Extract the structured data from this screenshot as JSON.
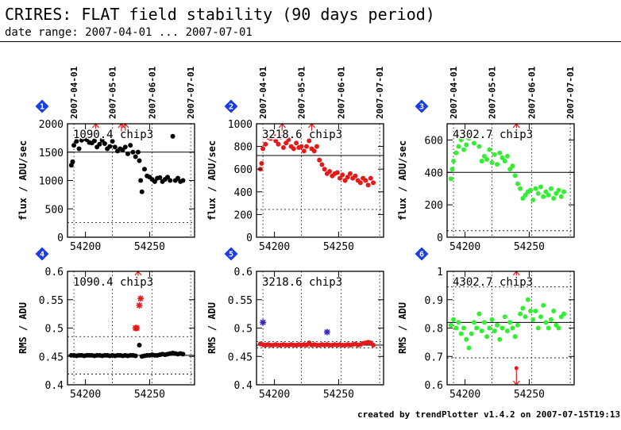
{
  "header": {
    "title": "CRIRES: FLAT field stability (90 days period)",
    "subtitle": "date range: 2007-04-01 ... 2007-07-01"
  },
  "footer": {
    "text": "created by trendPlotter v1.4.2 on 2007-07-15T19:13:13"
  },
  "chart_data": [
    {
      "type": "scatter",
      "panel": "1",
      "label": "1090.4 chip3",
      "ylabel": "flux / ADU/sec",
      "ylim": [
        0,
        2000
      ],
      "yticks": [
        0,
        500,
        1000,
        1500,
        2000
      ],
      "xlim": [
        54186,
        54285
      ],
      "xticks": [
        54200,
        54250
      ],
      "date_ticks": [
        "2007-04-01",
        "2007-05-01",
        "2007-06-01",
        "2007-07-01"
      ],
      "date_values": [
        54191,
        54221,
        54252,
        54282
      ],
      "ref_line": 1500,
      "thresholds": [
        260
      ],
      "outliers_up": [
        54208,
        54228,
        54231
      ],
      "color": "#000000",
      "series": [
        {
          "x": [
            54189,
            54190,
            54191,
            54193,
            54195,
            54197,
            54199,
            54201,
            54203,
            54205,
            54207,
            54209,
            54211,
            54213,
            54215,
            54217,
            54219,
            54221,
            54223,
            54225,
            54227,
            54229,
            54231,
            54233,
            54235,
            54237,
            54239,
            54241,
            54242,
            54243,
            54244,
            54246,
            54248,
            54250,
            54252,
            54254,
            54256,
            54258,
            54260,
            54262,
            54264,
            54266,
            54268,
            54270,
            54272,
            54274,
            54276
          ],
          "y": [
            1270,
            1330,
            1620,
            1690,
            1560,
            1710,
            1740,
            1720,
            1670,
            1660,
            1700,
            1590,
            1640,
            1710,
            1650,
            1560,
            1600,
            1690,
            1590,
            1520,
            1560,
            1540,
            1590,
            1470,
            1620,
            1500,
            1420,
            1500,
            1350,
            1000,
            800,
            1200,
            1080,
            1060,
            1020,
            980,
            1040,
            1050,
            980,
            1020,
            1060,
            1000,
            1780,
            1000,
            1040,
            980,
            1000
          ]
        }
      ]
    },
    {
      "type": "scatter",
      "panel": "2",
      "label": "3218.6 chip3",
      "ylabel": "flux / ADU/sec",
      "ylim": [
        0,
        1000
      ],
      "yticks": [
        0,
        200,
        400,
        600,
        800,
        1000
      ],
      "xlim": [
        54186,
        54285
      ],
      "xticks": [
        54200,
        54250
      ],
      "date_ticks": [
        "2007-04-01",
        "2007-05-01",
        "2007-06-01",
        "2007-07-01"
      ],
      "date_values": [
        54191,
        54221,
        54252,
        54282
      ],
      "ref_line": 720,
      "thresholds": [
        245
      ],
      "outliers_up": [
        54206,
        54229
      ],
      "color": "#e31a1a",
      "series": [
        {
          "x": [
            54189,
            54190,
            54191,
            54193,
            54195,
            54197,
            54199,
            54201,
            54203,
            54205,
            54207,
            54209,
            54211,
            54213,
            54215,
            54217,
            54219,
            54221,
            54223,
            54225,
            54227,
            54229,
            54231,
            54233,
            54235,
            54237,
            54239,
            54241,
            54243,
            54245,
            54247,
            54249,
            54251,
            54253,
            54255,
            54257,
            54259,
            54261,
            54263,
            54265,
            54267,
            54269,
            54271,
            54273,
            54275,
            54277
          ],
          "y": [
            600,
            650,
            780,
            820,
            880,
            870,
            900,
            850,
            820,
            880,
            790,
            830,
            860,
            800,
            780,
            830,
            790,
            800,
            760,
            800,
            850,
            780,
            760,
            800,
            680,
            640,
            600,
            560,
            580,
            540,
            560,
            570,
            520,
            550,
            500,
            530,
            560,
            520,
            540,
            500,
            480,
            520,
            500,
            460,
            520,
            480
          ]
        }
      ]
    },
    {
      "type": "scatter",
      "panel": "3",
      "label": "4302.7 chip3",
      "ylabel": "flux / ADU/sec",
      "ylim": [
        0,
        700
      ],
      "yticks": [
        0,
        200,
        400,
        600
      ],
      "xlim": [
        54186,
        54285
      ],
      "xticks": [
        54200,
        54250
      ],
      "date_ticks": [
        "2007-04-01",
        "2007-05-01",
        "2007-06-01",
        "2007-07-01"
      ],
      "date_values": [
        54191,
        54221,
        54252,
        54282
      ],
      "ref_line": 400,
      "thresholds": [
        40
      ],
      "outliers_up": [
        54240
      ],
      "color": "#33ee33",
      "series": [
        {
          "x": [
            54189,
            54190,
            54191,
            54193,
            54195,
            54197,
            54199,
            54201,
            54203,
            54205,
            54207,
            54209,
            54211,
            54213,
            54215,
            54217,
            54219,
            54221,
            54223,
            54225,
            54227,
            54229,
            54231,
            54233,
            54235,
            54237,
            54239,
            54241,
            54243,
            54245,
            54247,
            54249,
            54251,
            54253,
            54255,
            54257,
            54259,
            54261,
            54263,
            54265,
            54267,
            54269,
            54271,
            54273,
            54275,
            54277
          ],
          "y": [
            360,
            420,
            470,
            520,
            560,
            600,
            540,
            570,
            610,
            650,
            580,
            620,
            560,
            470,
            500,
            480,
            540,
            460,
            510,
            450,
            520,
            490,
            470,
            500,
            420,
            440,
            380,
            330,
            300,
            240,
            260,
            280,
            290,
            230,
            300,
            270,
            310,
            250,
            280,
            260,
            300,
            240,
            270,
            290,
            250,
            280
          ]
        }
      ]
    },
    {
      "type": "scatter",
      "panel": "4",
      "label": "1090.4 chip3",
      "ylabel": "RMS / ADU",
      "ylim": [
        0.4,
        0.6
      ],
      "yticks": [
        0.4,
        0.45,
        0.5,
        0.55,
        0.6
      ],
      "xlim": [
        54186,
        54285
      ],
      "xticks": [
        54200,
        54250
      ],
      "date_ticks": [],
      "date_values": [
        54191,
        54221,
        54252,
        54282
      ],
      "ref_line": 0.452,
      "thresholds": [
        0.419,
        0.485
      ],
      "outliers_up": [
        54241
      ],
      "color": "#000000",
      "series": [
        {
          "x": [
            54189,
            54191,
            54193,
            54195,
            54197,
            54199,
            54201,
            54203,
            54205,
            54207,
            54209,
            54211,
            54213,
            54215,
            54217,
            54219,
            54221,
            54223,
            54225,
            54227,
            54229,
            54231,
            54233,
            54235,
            54237,
            54239,
            54242,
            54244,
            54246,
            54248,
            54250,
            54252,
            54254,
            54256,
            54258,
            54260,
            54262,
            54264,
            54266,
            54268,
            54270,
            54272,
            54274,
            54276
          ],
          "y": [
            0.452,
            0.452,
            0.451,
            0.452,
            0.452,
            0.451,
            0.452,
            0.452,
            0.452,
            0.451,
            0.452,
            0.452,
            0.451,
            0.452,
            0.452,
            0.451,
            0.452,
            0.451,
            0.452,
            0.452,
            0.451,
            0.452,
            0.451,
            0.452,
            0.452,
            0.451,
            0.47,
            0.45,
            0.451,
            0.452,
            0.452,
            0.453,
            0.452,
            0.452,
            0.453,
            0.454,
            0.453,
            0.454,
            0.455,
            0.456,
            0.455,
            0.454,
            0.455,
            0.454
          ]
        }
      ],
      "highlight": {
        "color": "#e31a1a",
        "x": [
          54239,
          54240,
          54242,
          54243
        ],
        "y": [
          0.5,
          0.5,
          0.54,
          0.552
        ]
      }
    },
    {
      "type": "scatter",
      "panel": "5",
      "label": "3218.6 chip3",
      "ylabel": "RMS / ADU",
      "ylim": [
        0.4,
        0.6
      ],
      "yticks": [
        0.4,
        0.45,
        0.5,
        0.55,
        0.6
      ],
      "xlim": [
        54186,
        54285
      ],
      "xticks": [
        54200,
        54250
      ],
      "date_ticks": [],
      "date_values": [
        54191,
        54221,
        54252,
        54282
      ],
      "ref_line": 0.47,
      "thresholds": [
        0.465,
        0.476
      ],
      "outliers_up": [],
      "color": "#e31a1a",
      "series": [
        {
          "x": [
            54189,
            54191,
            54193,
            54195,
            54197,
            54199,
            54201,
            54203,
            54205,
            54207,
            54209,
            54211,
            54213,
            54215,
            54217,
            54219,
            54221,
            54223,
            54225,
            54227,
            54229,
            54231,
            54233,
            54235,
            54237,
            54239,
            54241,
            54243,
            54245,
            54247,
            54249,
            54251,
            54253,
            54255,
            54257,
            54259,
            54261,
            54263,
            54265,
            54267,
            54269,
            54271,
            54273,
            54275,
            54277
          ],
          "y": [
            0.472,
            0.471,
            0.47,
            0.471,
            0.47,
            0.47,
            0.471,
            0.47,
            0.47,
            0.471,
            0.47,
            0.47,
            0.471,
            0.47,
            0.47,
            0.471,
            0.47,
            0.471,
            0.47,
            0.474,
            0.47,
            0.471,
            0.47,
            0.47,
            0.471,
            0.47,
            0.471,
            0.47,
            0.47,
            0.471,
            0.47,
            0.471,
            0.47,
            0.47,
            0.471,
            0.47,
            0.471,
            0.472,
            0.47,
            0.471,
            0.473,
            0.474,
            0.475,
            0.474,
            0.47
          ]
        }
      ],
      "highlight": {
        "color": "#3322cc",
        "x": [
          54191,
          54241
        ],
        "y": [
          0.51,
          0.493
        ]
      }
    },
    {
      "type": "scatter",
      "panel": "6",
      "label": "4302.7 chip3",
      "ylabel": "RMS / ADU",
      "ylim": [
        0.6,
        1.0
      ],
      "yticks": [
        0.6,
        0.7,
        0.8,
        0.9,
        1
      ],
      "xlim": [
        54186,
        54285
      ],
      "xticks": [
        54200,
        54250
      ],
      "date_ticks": [],
      "date_values": [
        54191,
        54221,
        54252,
        54282
      ],
      "ref_line": 0.82,
      "thresholds": [
        0.695,
        0.945
      ],
      "outliers_up": [
        54240
      ],
      "outliers_down": [
        54240
      ],
      "color": "#33ee33",
      "series": [
        {
          "x": [
            54189,
            54191,
            54193,
            54195,
            54197,
            54199,
            54201,
            54203,
            54205,
            54207,
            54209,
            54211,
            54213,
            54215,
            54217,
            54219,
            54221,
            54223,
            54225,
            54227,
            54229,
            54231,
            54233,
            54235,
            54237,
            54239,
            54241,
            54243,
            54245,
            54247,
            54249,
            54251,
            54253,
            54255,
            54257,
            54259,
            54261,
            54263,
            54265,
            54267,
            54269,
            54271,
            54273,
            54275,
            54277
          ],
          "y": [
            0.81,
            0.83,
            0.8,
            0.82,
            0.78,
            0.8,
            0.76,
            0.73,
            0.78,
            0.82,
            0.8,
            0.85,
            0.79,
            0.82,
            0.77,
            0.8,
            0.83,
            0.79,
            0.81,
            0.76,
            0.8,
            0.84,
            0.79,
            0.82,
            0.8,
            0.77,
            0.81,
            0.85,
            0.87,
            0.84,
            0.9,
            0.86,
            0.83,
            0.86,
            0.8,
            0.84,
            0.88,
            0.82,
            0.8,
            0.83,
            0.86,
            0.81,
            0.8,
            0.84,
            0.85
          ]
        }
      ]
    }
  ]
}
